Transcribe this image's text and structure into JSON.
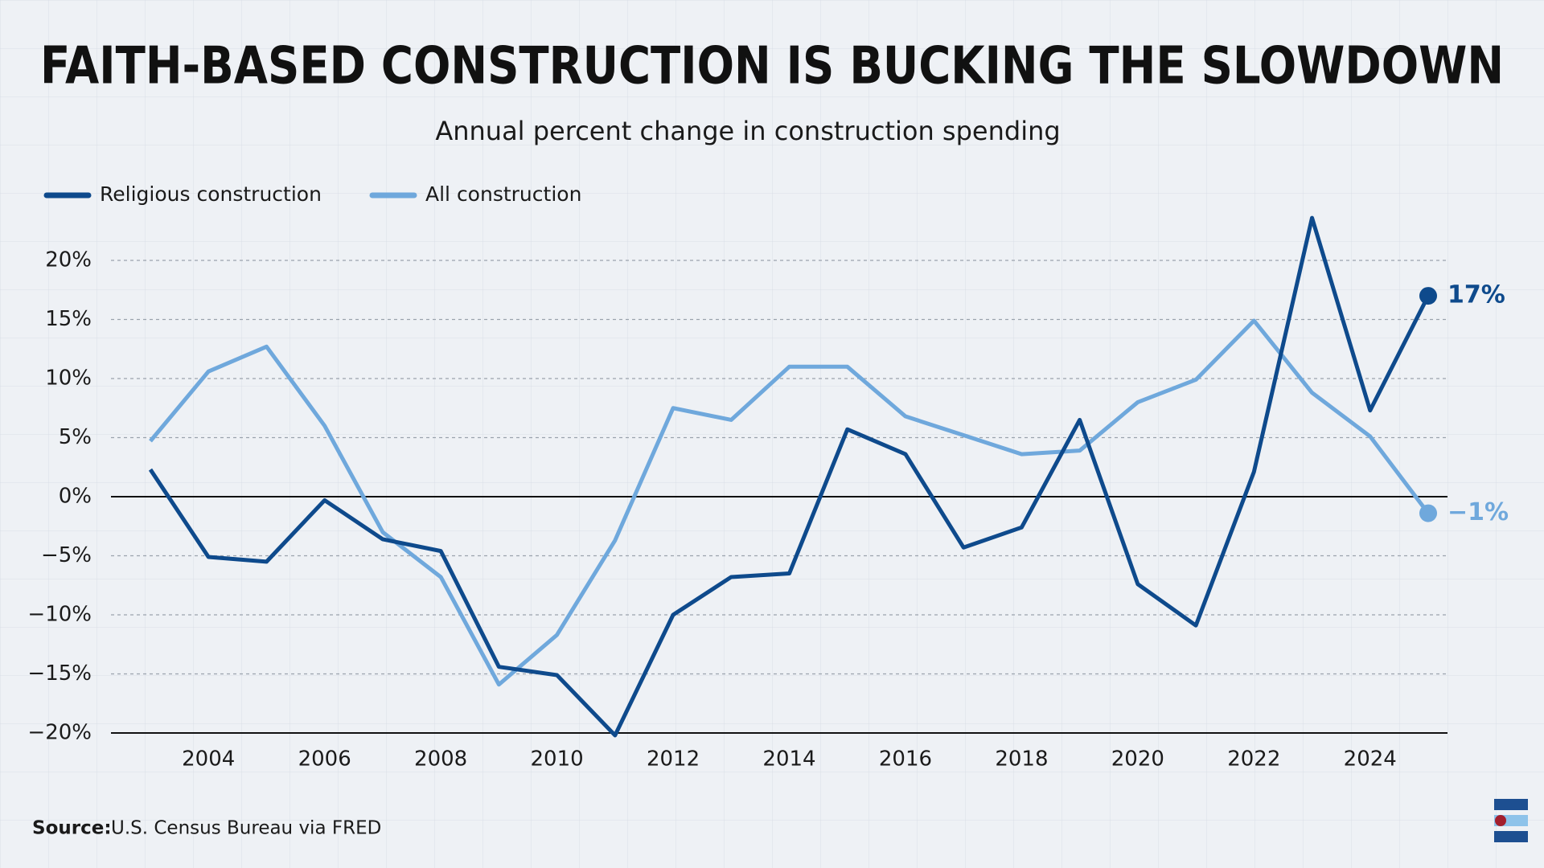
{
  "chart_data": {
    "type": "line",
    "title": "FAITH-BASED CONSTRUCTION IS BUCKING THE SLOWDOWN",
    "subtitle": "Annual percent change in construction spending",
    "x": [
      2003,
      2004,
      2005,
      2006,
      2007,
      2008,
      2009,
      2010,
      2011,
      2012,
      2013,
      2014,
      2015,
      2016,
      2017,
      2018,
      2019,
      2020,
      2021,
      2022,
      2023,
      2024,
      2025
    ],
    "series": [
      {
        "name": "Religious construction",
        "color": "#0e4a8c",
        "values": [
          2.3,
          -5.1,
          -5.5,
          -0.3,
          -3.6,
          -4.6,
          -14.4,
          -15.1,
          -20.2,
          -10,
          -6.8,
          -6.5,
          5.7,
          3.6,
          -4.3,
          -2.6,
          6.5,
          -7.4,
          -10.9,
          2.1,
          23.6,
          7.3,
          17
        ],
        "value_labels": [
          null,
          null,
          null,
          null,
          null,
          null,
          null,
          null,
          null,
          null,
          null,
          null,
          null,
          null,
          null,
          null,
          null,
          null,
          null,
          null,
          null,
          null,
          "17%"
        ]
      },
      {
        "name": "All construction",
        "color": "#6fa8dc",
        "values": [
          4.7,
          10.6,
          12.7,
          6.0,
          -3.0,
          -6.8,
          -15.9,
          -11.7,
          -3.7,
          7.5,
          6.5,
          11,
          11,
          6.8,
          5.2,
          3.6,
          3.9,
          8,
          9.9,
          14.9,
          8.8,
          5.1,
          -1.4
        ],
        "value_labels": [
          null,
          null,
          null,
          null,
          null,
          null,
          null,
          null,
          null,
          null,
          null,
          null,
          null,
          null,
          null,
          null,
          null,
          null,
          null,
          null,
          null,
          null,
          "−1%"
        ]
      }
    ],
    "xlim": [
      2003,
      2025
    ],
    "xticks": [
      2004,
      2006,
      2008,
      2010,
      2012,
      2014,
      2016,
      2018,
      2020,
      2022,
      2024
    ],
    "ylim": [
      -20,
      20
    ],
    "yticks": [
      {
        "value": -20,
        "label": "−20%"
      },
      {
        "value": -15,
        "label": "−15%"
      },
      {
        "value": -10,
        "label": "−10%"
      },
      {
        "value": -5,
        "label": "−5%"
      },
      {
        "value": 0,
        "label": "0%"
      },
      {
        "value": 5,
        "label": "5%"
      },
      {
        "value": 10,
        "label": "10%"
      },
      {
        "value": 15,
        "label": "15%"
      },
      {
        "value": 20,
        "label": "20%"
      }
    ],
    "grid": true,
    "source": {
      "label": "Source:",
      "text": "U.S. Census Bureau via FRED"
    }
  }
}
